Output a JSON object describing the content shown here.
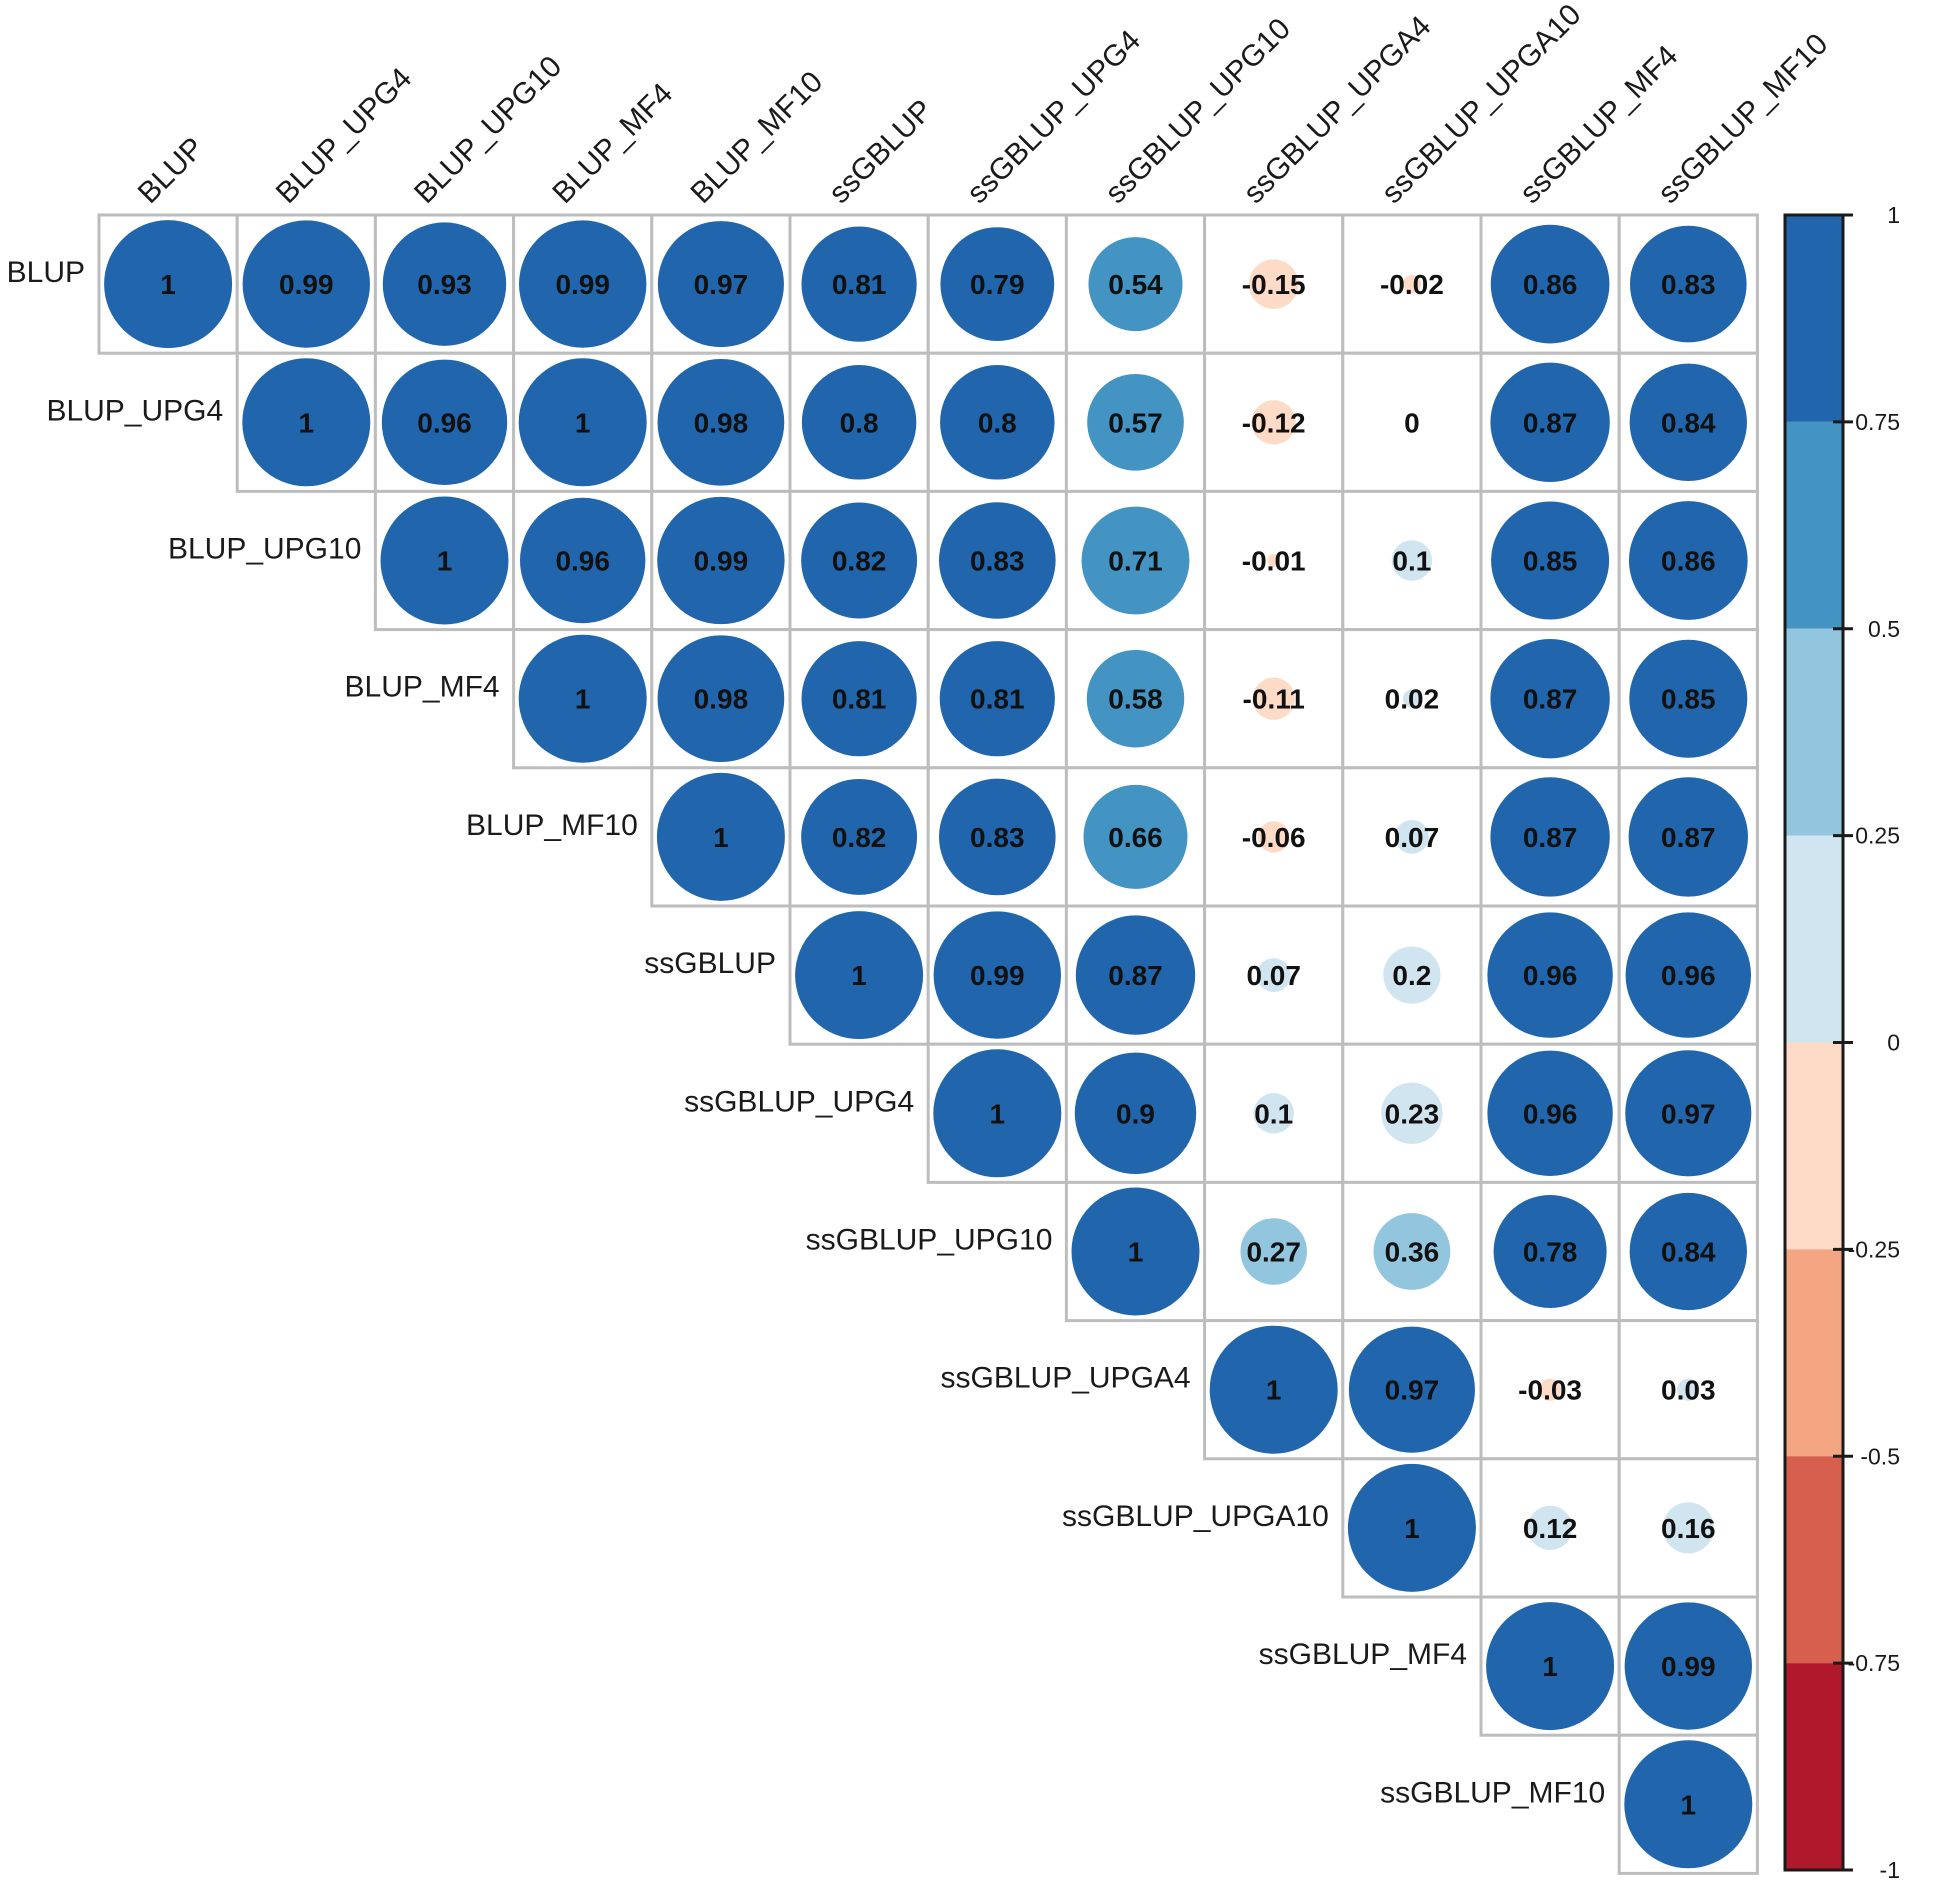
{
  "chart_data": {
    "type": "heatmap",
    "subtype": "correlation-matrix-upper",
    "title": "",
    "variables": [
      "BLUP",
      "BLUP_UPG4",
      "BLUP_UPG10",
      "BLUP_MF4",
      "BLUP_MF10",
      "ssGBLUP",
      "ssGBLUP_UPG4",
      "ssGBLUP_UPG10",
      "ssGBLUP_UPGA4",
      "ssGBLUP_UPGA10",
      "ssGBLUP_MF4",
      "ssGBLUP_MF10"
    ],
    "values": [
      [
        "1",
        "0.99",
        "0.93",
        "0.99",
        "0.97",
        "0.81",
        "0.79",
        "0.54",
        "-0.15",
        "-0.02",
        "0.86",
        "0.83"
      ],
      [
        null,
        "1",
        "0.96",
        "1",
        "0.98",
        "0.8",
        "0.8",
        "0.57",
        "-0.12",
        "0",
        "0.87",
        "0.84"
      ],
      [
        null,
        null,
        "1",
        "0.96",
        "0.99",
        "0.82",
        "0.83",
        "0.71",
        "-0.01",
        "0.1",
        "0.85",
        "0.86"
      ],
      [
        null,
        null,
        null,
        "1",
        "0.98",
        "0.81",
        "0.81",
        "0.58",
        "-0.11",
        "0.02",
        "0.87",
        "0.85"
      ],
      [
        null,
        null,
        null,
        null,
        "1",
        "0.82",
        "0.83",
        "0.66",
        "-0.06",
        "0.07",
        "0.87",
        "0.87"
      ],
      [
        null,
        null,
        null,
        null,
        null,
        "1",
        "0.99",
        "0.87",
        "0.07",
        "0.2",
        "0.96",
        "0.96"
      ],
      [
        null,
        null,
        null,
        null,
        null,
        null,
        "1",
        "0.9",
        "0.1",
        "0.23",
        "0.96",
        "0.97"
      ],
      [
        null,
        null,
        null,
        null,
        null,
        null,
        null,
        "1",
        "0.27",
        "0.36",
        "0.78",
        "0.84"
      ],
      [
        null,
        null,
        null,
        null,
        null,
        null,
        null,
        null,
        "1",
        "0.97",
        "-0.03",
        "0.03"
      ],
      [
        null,
        null,
        null,
        null,
        null,
        null,
        null,
        null,
        null,
        "1",
        "0.12",
        "0.16"
      ],
      [
        null,
        null,
        null,
        null,
        null,
        null,
        null,
        null,
        null,
        null,
        "1",
        "0.99"
      ],
      [
        null,
        null,
        null,
        null,
        null,
        null,
        null,
        null,
        null,
        null,
        null,
        "1"
      ]
    ],
    "colorbar": {
      "range": [
        -1,
        1
      ],
      "ticks": [
        "1",
        "0.75",
        "0.5",
        "0.25",
        "0",
        "-0.25",
        "-0.5",
        "-0.75",
        "-1"
      ],
      "bins": [
        {
          "from": 0.75,
          "to": 1,
          "color": "#2166ac"
        },
        {
          "from": 0.5,
          "to": 0.75,
          "color": "#4393c3"
        },
        {
          "from": 0.25,
          "to": 0.5,
          "color": "#92c5de"
        },
        {
          "from": 0,
          "to": 0.25,
          "color": "#d1e5f0"
        },
        {
          "from": -0.25,
          "to": 0,
          "color": "#fddbc7"
        },
        {
          "from": -0.5,
          "to": -0.25,
          "color": "#f4a582"
        },
        {
          "from": -0.75,
          "to": -0.5,
          "color": "#d6604d"
        },
        {
          "from": -1,
          "to": -0.75,
          "color": "#b2182b"
        }
      ]
    }
  }
}
